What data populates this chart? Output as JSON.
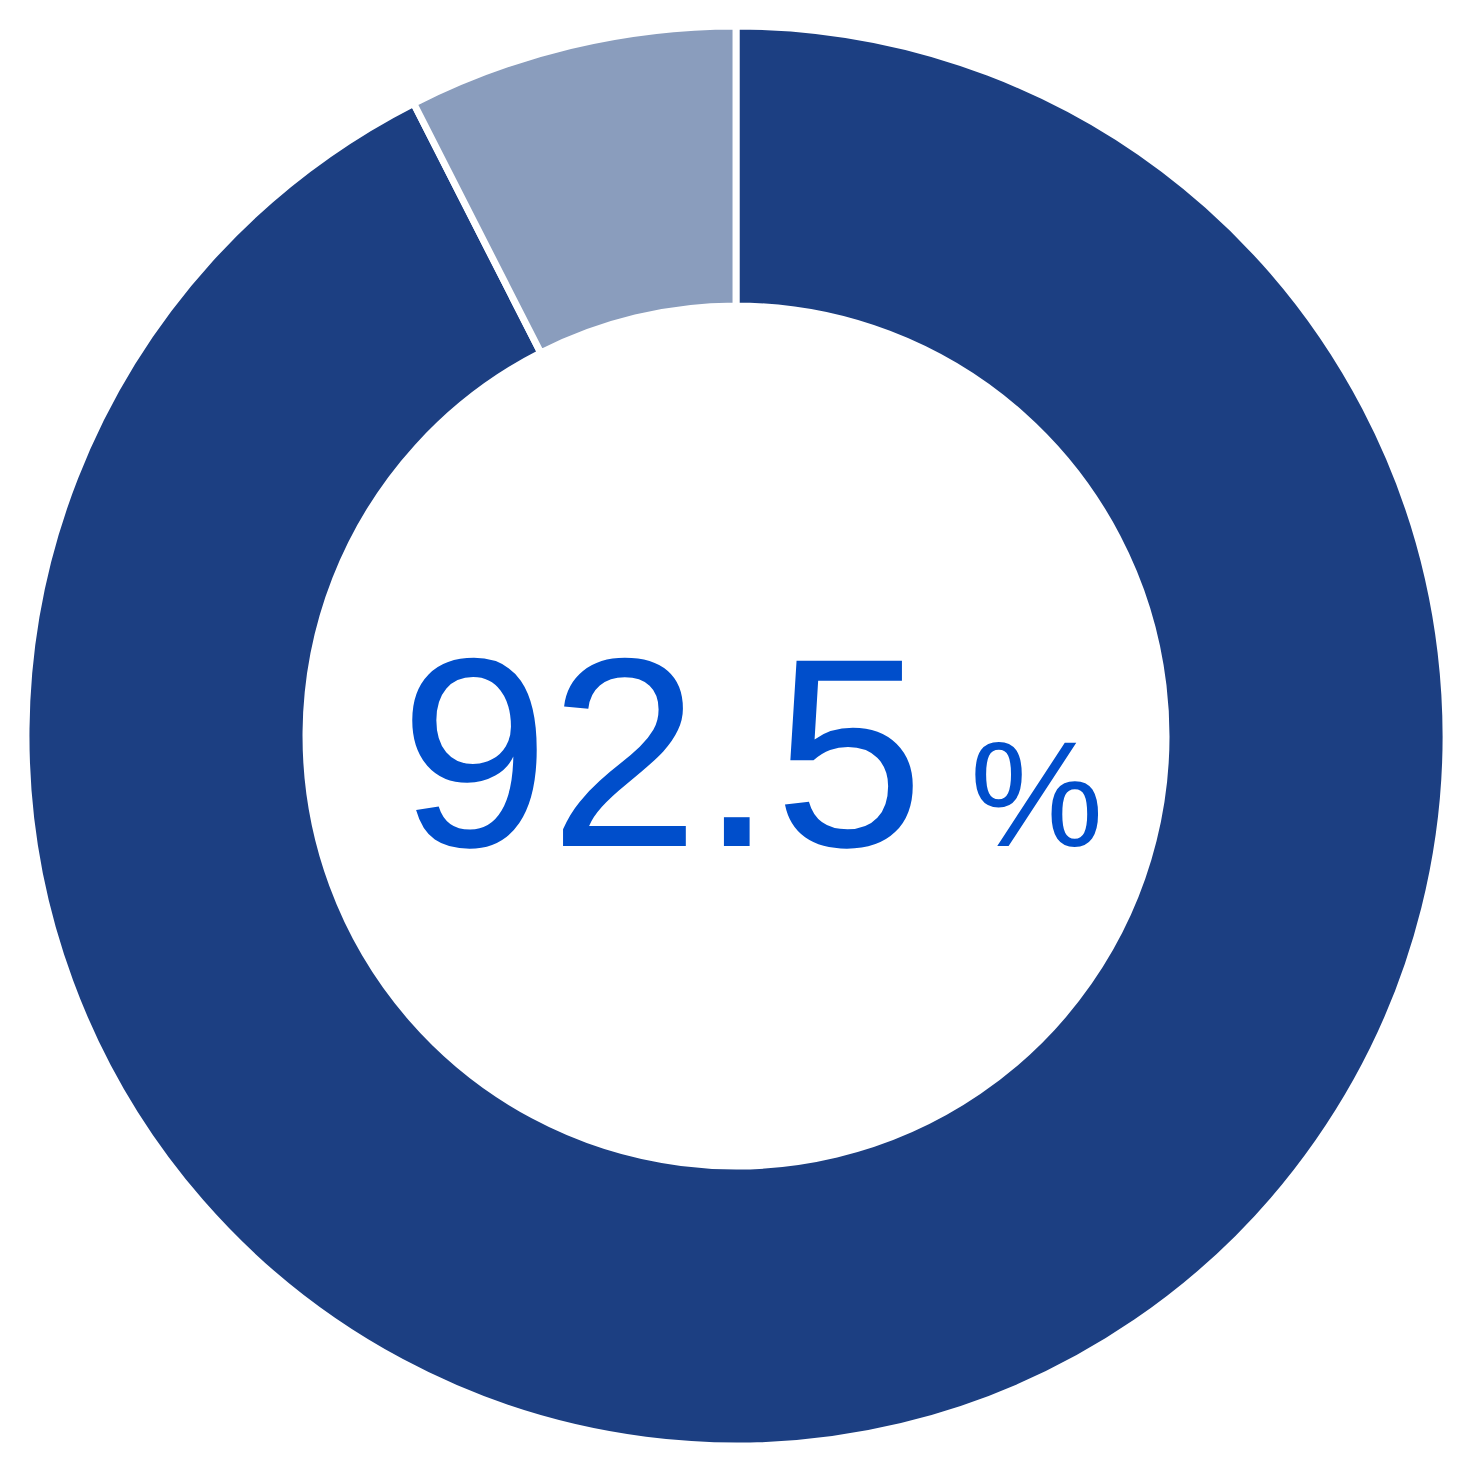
{
  "chart_data": {
    "type": "donut",
    "categories": [
      null,
      null
    ],
    "values": [
      92.5,
      7.5
    ],
    "colors": [
      "#1c3f82",
      "#8a9dbd"
    ],
    "value_labels": [
      "92.5 %",
      null
    ]
  }
}
